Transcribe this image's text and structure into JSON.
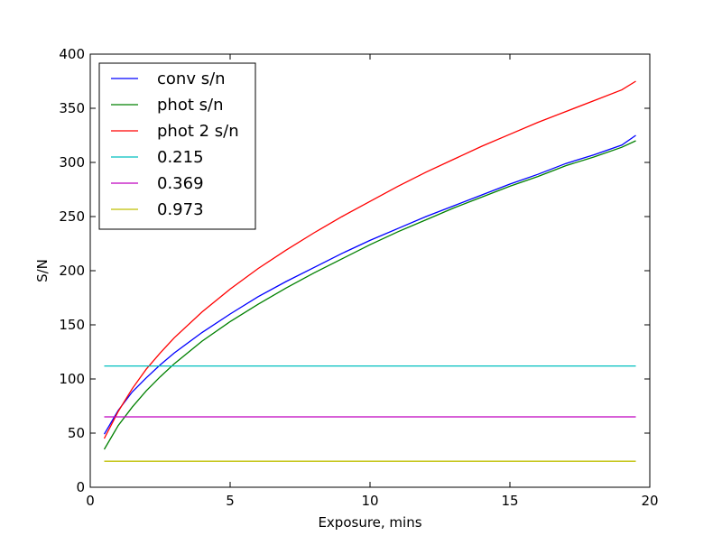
{
  "chart_data": {
    "type": "line",
    "title": "",
    "xlabel": "Exposure, mins",
    "ylabel": "S/N",
    "xlim": [
      0,
      20
    ],
    "ylim": [
      0,
      400
    ],
    "xticks": [
      0,
      5,
      10,
      15,
      20
    ],
    "yticks": [
      0,
      50,
      100,
      150,
      200,
      250,
      300,
      350,
      400
    ],
    "grid": false,
    "legend_position": "top-left",
    "x": [
      0.5,
      1,
      1.5,
      2,
      2.5,
      3,
      4,
      5,
      6,
      7,
      8,
      9,
      10,
      11,
      12,
      13,
      14,
      15,
      16,
      17,
      18,
      19,
      19.5
    ],
    "series": [
      {
        "name": "conv s/n",
        "color": "#0000ff",
        "values": [
          49,
          71,
          88,
          101,
          113,
          124,
          143,
          160,
          176,
          190,
          203,
          216,
          228,
          239,
          250,
          260,
          270,
          280,
          289,
          299,
          307,
          316,
          325
        ]
      },
      {
        "name": "phot s/n",
        "color": "#008000",
        "values": [
          35,
          57,
          74,
          89,
          102,
          114,
          135,
          153,
          169,
          184,
          198,
          211,
          224,
          236,
          247,
          258,
          268,
          278,
          287,
          297,
          305,
          314,
          320
        ]
      },
      {
        "name": "phot 2 s/n",
        "color": "#ff0000",
        "values": [
          45,
          70,
          91,
          109,
          124,
          138,
          162,
          183,
          202,
          219,
          235,
          250,
          264,
          278,
          291,
          303,
          315,
          326,
          337,
          347,
          357,
          367,
          375
        ]
      },
      {
        "name": "0.215",
        "color": "#00bfbf",
        "values": [
          112,
          112,
          112,
          112,
          112,
          112,
          112,
          112,
          112,
          112,
          112,
          112,
          112,
          112,
          112,
          112,
          112,
          112,
          112,
          112,
          112,
          112,
          112
        ]
      },
      {
        "name": "0.369",
        "color": "#bf00bf",
        "values": [
          65,
          65,
          65,
          65,
          65,
          65,
          65,
          65,
          65,
          65,
          65,
          65,
          65,
          65,
          65,
          65,
          65,
          65,
          65,
          65,
          65,
          65,
          65
        ]
      },
      {
        "name": "0.973",
        "color": "#bfbf00",
        "values": [
          24,
          24,
          24,
          24,
          24,
          24,
          24,
          24,
          24,
          24,
          24,
          24,
          24,
          24,
          24,
          24,
          24,
          24,
          24,
          24,
          24,
          24,
          24
        ]
      }
    ]
  }
}
